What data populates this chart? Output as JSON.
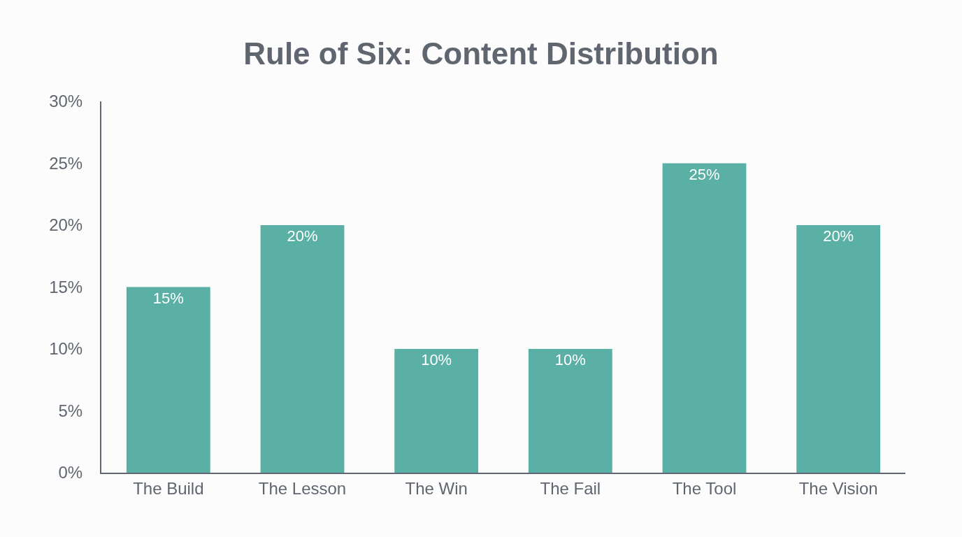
{
  "chart_data": {
    "type": "bar",
    "title": "Rule of Six: Content Distribution",
    "categories": [
      "The Build",
      "The Lesson",
      "The Win",
      "The Fail",
      "The Tool",
      "The Vision"
    ],
    "values": [
      15,
      20,
      10,
      10,
      25,
      20
    ],
    "value_labels": [
      "15%",
      "20%",
      "10%",
      "10%",
      "25%",
      "20%"
    ],
    "color": "#5ab0a4",
    "ylim": [
      0,
      30
    ],
    "yticks": [
      {
        "value": 0,
        "label": "0%"
      },
      {
        "value": 5,
        "label": "5%"
      },
      {
        "value": 10,
        "label": "10%"
      },
      {
        "value": 15,
        "label": "15%"
      },
      {
        "value": 20,
        "label": "20%"
      },
      {
        "value": 25,
        "label": "25%"
      },
      {
        "value": 30,
        "label": "30%"
      }
    ],
    "grid": false
  }
}
